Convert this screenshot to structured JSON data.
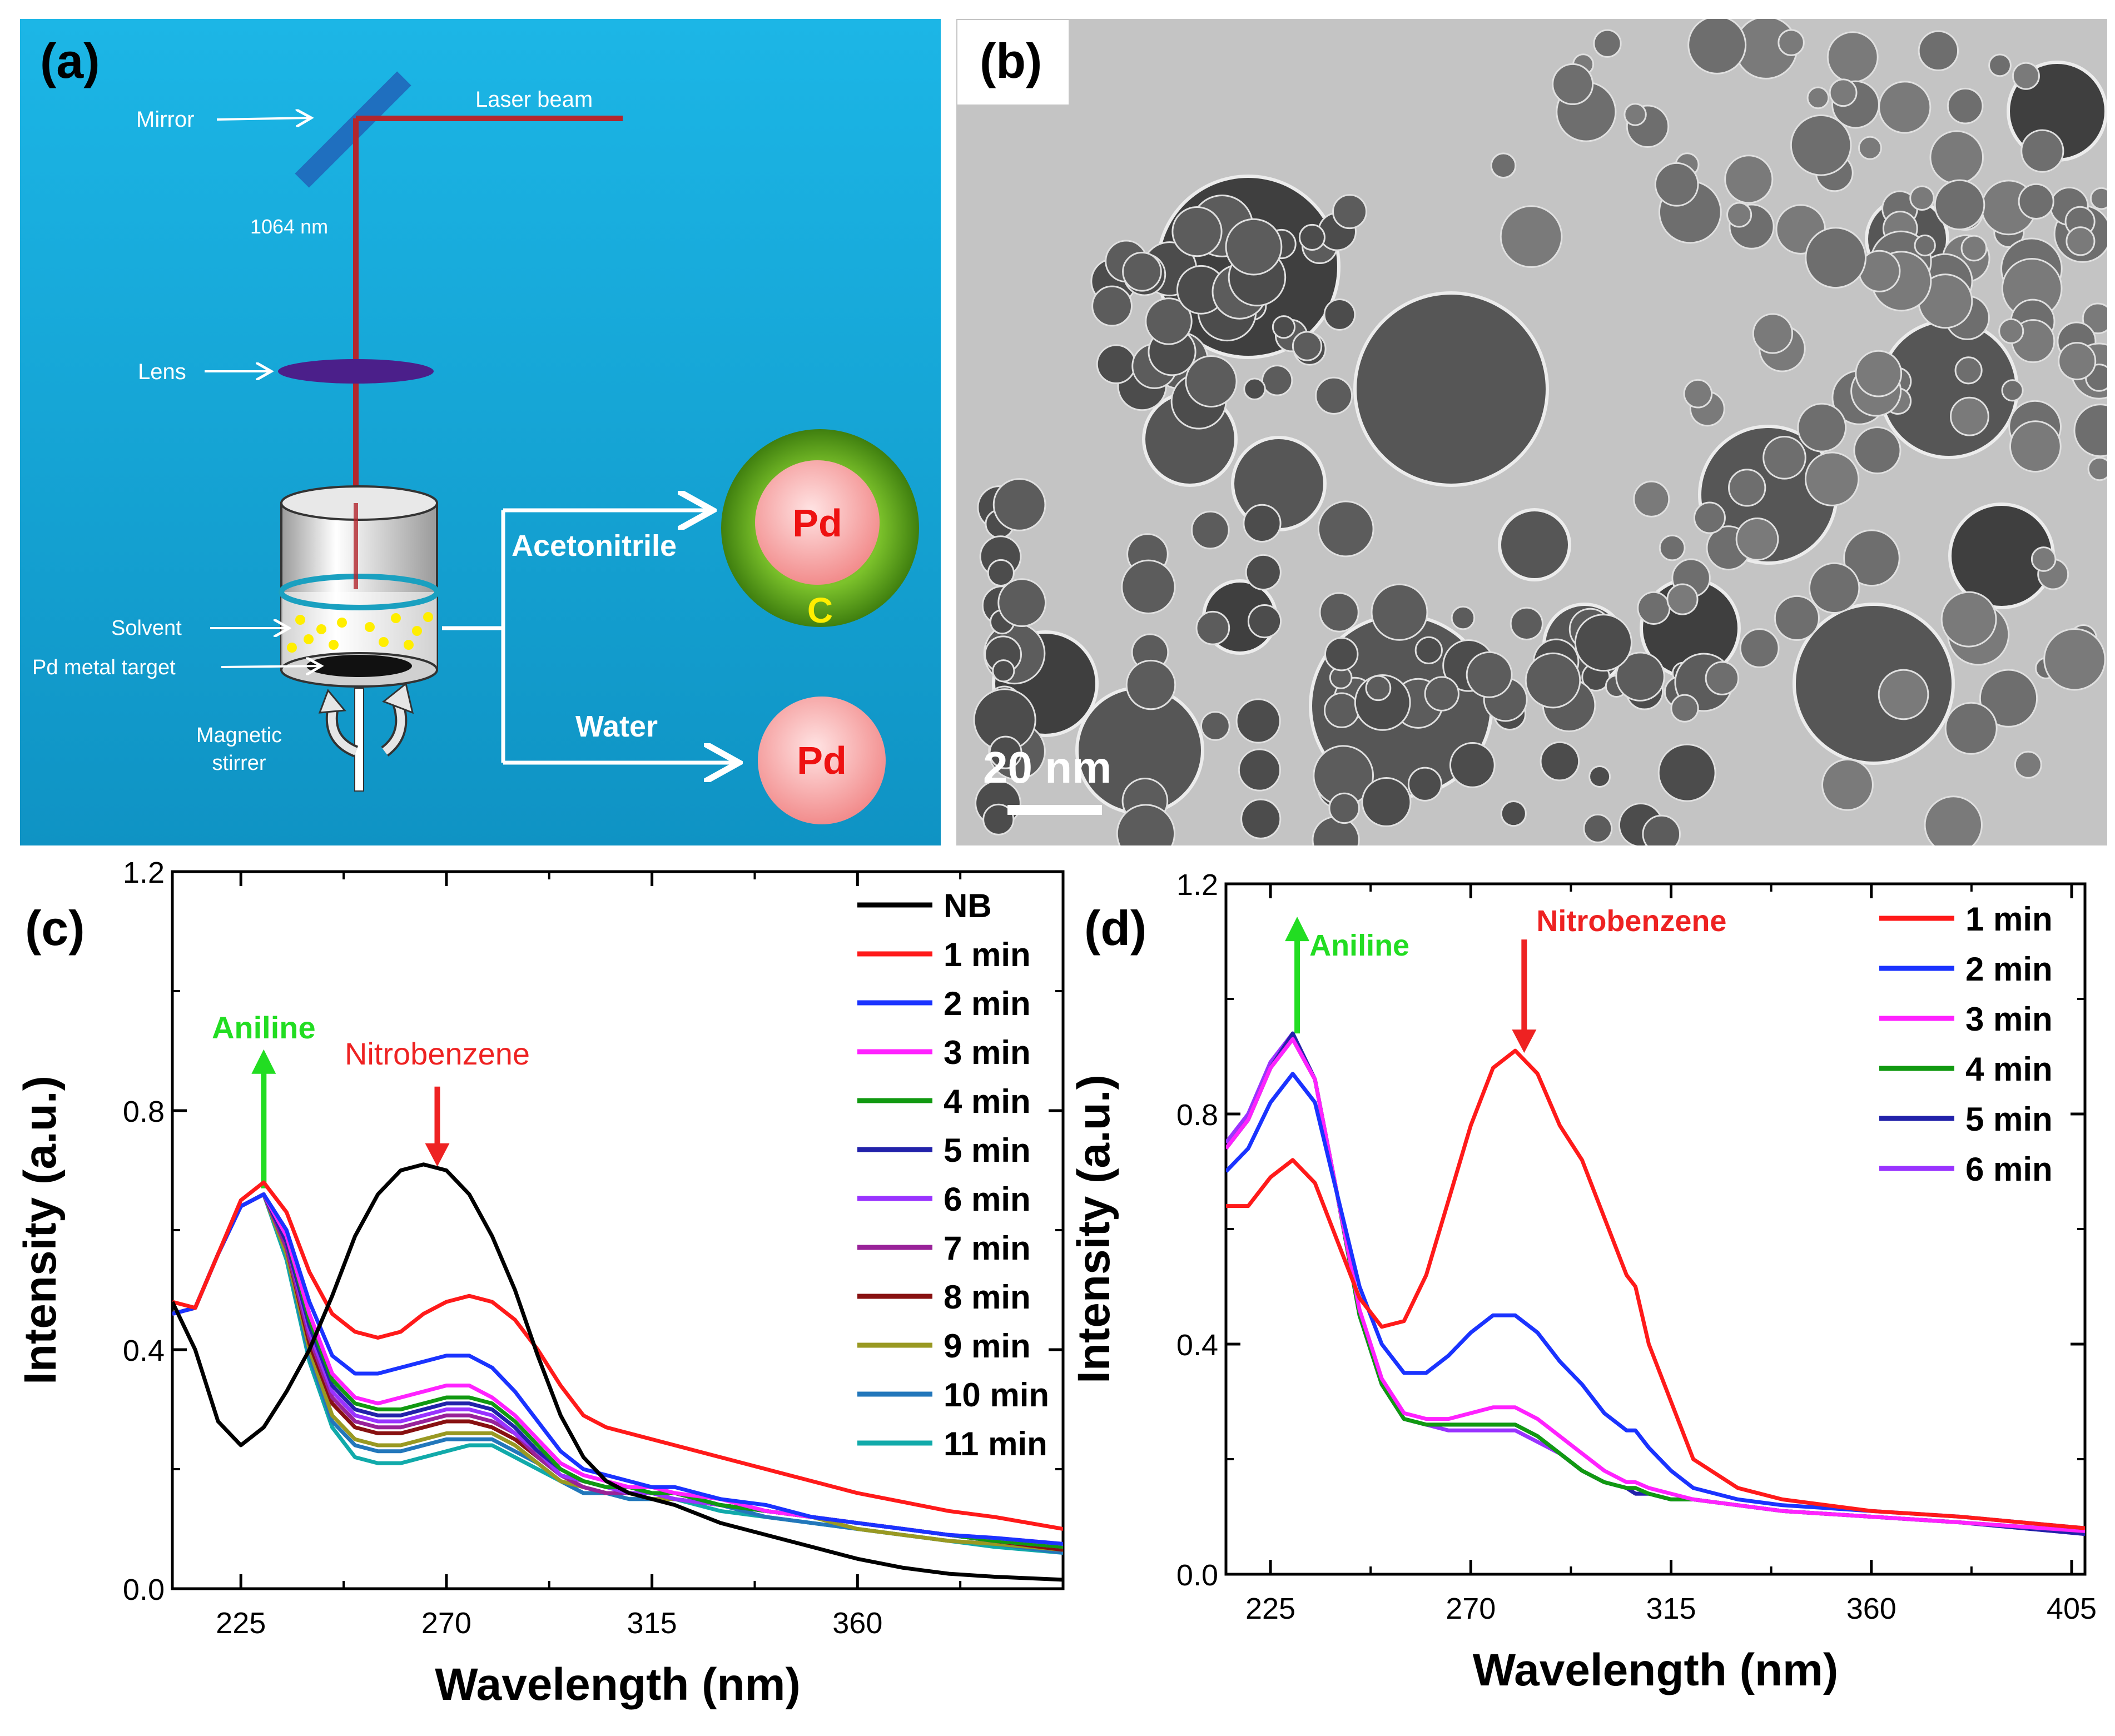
{
  "panel_a": {
    "label": "(a)",
    "mirror": "Mirror",
    "laser_beam": "Laser beam",
    "wavelength": "1064 nm",
    "lens": "Lens",
    "solvent": "Solvent",
    "target": "Pd metal target",
    "stirrer_line1": "Magnetic",
    "stirrer_line2": "stirrer",
    "acetonitrile": "Acetonitrile",
    "water": "Water",
    "pd": "Pd",
    "carbon": "C",
    "colors": {
      "background": "#1aa3d6",
      "beam": "#b3262d",
      "lens": "#4b1f8a",
      "shell": "#5a9e1c",
      "core": "#f7a6a6",
      "arrow": "#ffffff",
      "particles": "#ffee00",
      "carbon_text": "#ffee00",
      "pd_text": "#ee1111"
    }
  },
  "panel_b": {
    "label": "(b)",
    "scale_bar": "20 nm",
    "colors": {
      "background": "#c2c2c2",
      "particle": "#505050"
    }
  },
  "chart_data": [
    {
      "panel": "(c)",
      "type": "line",
      "xlabel": "Wavelength (nm)",
      "ylabel": "Intensity (a.u.)",
      "xlim": [
        210,
        405
      ],
      "ylim": [
        0.0,
        1.2
      ],
      "xticks": [
        225,
        270,
        315,
        360
      ],
      "xtick_labels": [
        "225",
        "270",
        "315",
        "360"
      ],
      "yticks": [
        0.0,
        0.4,
        0.8,
        1.2
      ],
      "ytick_labels": [
        "0.0",
        "0.4",
        "0.8",
        "1.2"
      ],
      "legend_position": "top-right",
      "annotations": [
        {
          "text": "Aniline",
          "x": 230,
          "y": 0.67,
          "direction": "up",
          "color": "#22dd22"
        },
        {
          "text": "Nitrobenzene",
          "x": 268,
          "y": 0.71,
          "direction": "down",
          "color": "#ee2222"
        }
      ],
      "x": [
        210,
        215,
        220,
        225,
        230,
        235,
        240,
        245,
        250,
        255,
        260,
        265,
        270,
        275,
        280,
        285,
        290,
        295,
        300,
        305,
        310,
        315,
        320,
        330,
        340,
        350,
        360,
        370,
        380,
        390,
        405
      ],
      "series": [
        {
          "name": "NB",
          "color": "#000000",
          "values": [
            0.48,
            0.4,
            0.28,
            0.24,
            0.27,
            0.33,
            0.4,
            0.49,
            0.59,
            0.66,
            0.7,
            0.71,
            0.7,
            0.66,
            0.59,
            0.5,
            0.39,
            0.29,
            0.22,
            0.18,
            0.16,
            0.15,
            0.14,
            0.11,
            0.09,
            0.07,
            0.05,
            0.035,
            0.025,
            0.02,
            0.015
          ]
        },
        {
          "name": "1 min",
          "color": "#ff1a1a",
          "values": [
            0.48,
            0.47,
            0.56,
            0.65,
            0.68,
            0.63,
            0.53,
            0.46,
            0.43,
            0.42,
            0.43,
            0.46,
            0.48,
            0.49,
            0.48,
            0.45,
            0.4,
            0.34,
            0.29,
            0.27,
            0.26,
            0.25,
            0.24,
            0.22,
            0.2,
            0.18,
            0.16,
            0.145,
            0.13,
            0.12,
            0.1
          ]
        },
        {
          "name": "2 min",
          "color": "#1a33ff",
          "values": [
            0.46,
            0.47,
            0.56,
            0.64,
            0.66,
            0.6,
            0.48,
            0.39,
            0.36,
            0.36,
            0.37,
            0.38,
            0.39,
            0.39,
            0.37,
            0.33,
            0.28,
            0.23,
            0.2,
            0.19,
            0.18,
            0.17,
            0.17,
            0.15,
            0.14,
            0.12,
            0.11,
            0.1,
            0.09,
            0.085,
            0.075
          ]
        },
        {
          "name": "3 min",
          "color": "#ff22ff",
          "values": [
            0.46,
            0.47,
            0.56,
            0.64,
            0.66,
            0.59,
            0.46,
            0.36,
            0.32,
            0.31,
            0.32,
            0.33,
            0.34,
            0.34,
            0.32,
            0.29,
            0.25,
            0.21,
            0.19,
            0.18,
            0.17,
            0.17,
            0.16,
            0.15,
            0.13,
            0.12,
            0.11,
            0.1,
            0.09,
            0.085,
            0.075
          ]
        },
        {
          "name": "4 min",
          "color": "#119911",
          "values": [
            0.46,
            0.47,
            0.56,
            0.64,
            0.66,
            0.59,
            0.45,
            0.35,
            0.31,
            0.3,
            0.3,
            0.31,
            0.32,
            0.32,
            0.31,
            0.28,
            0.24,
            0.2,
            0.18,
            0.17,
            0.17,
            0.16,
            0.16,
            0.14,
            0.13,
            0.12,
            0.11,
            0.1,
            0.09,
            0.08,
            0.07
          ]
        },
        {
          "name": "5 min",
          "color": "#2222aa",
          "values": [
            0.46,
            0.47,
            0.56,
            0.64,
            0.66,
            0.58,
            0.44,
            0.34,
            0.3,
            0.29,
            0.29,
            0.3,
            0.31,
            0.31,
            0.3,
            0.27,
            0.23,
            0.2,
            0.18,
            0.17,
            0.17,
            0.16,
            0.16,
            0.14,
            0.13,
            0.12,
            0.11,
            0.1,
            0.09,
            0.08,
            0.07
          ]
        },
        {
          "name": "6 min",
          "color": "#9933ff",
          "values": [
            0.46,
            0.47,
            0.56,
            0.64,
            0.66,
            0.58,
            0.43,
            0.33,
            0.29,
            0.28,
            0.28,
            0.29,
            0.3,
            0.3,
            0.29,
            0.26,
            0.23,
            0.19,
            0.18,
            0.17,
            0.16,
            0.16,
            0.15,
            0.14,
            0.13,
            0.12,
            0.11,
            0.1,
            0.09,
            0.08,
            0.07
          ]
        },
        {
          "name": "7 min",
          "color": "#992299",
          "values": [
            0.46,
            0.47,
            0.56,
            0.64,
            0.66,
            0.57,
            0.42,
            0.32,
            0.28,
            0.27,
            0.27,
            0.28,
            0.29,
            0.29,
            0.28,
            0.26,
            0.22,
            0.19,
            0.17,
            0.16,
            0.16,
            0.16,
            0.15,
            0.14,
            0.13,
            0.12,
            0.11,
            0.1,
            0.09,
            0.08,
            0.07
          ]
        },
        {
          "name": "8 min",
          "color": "#881111",
          "values": [
            0.46,
            0.47,
            0.56,
            0.64,
            0.66,
            0.57,
            0.41,
            0.31,
            0.27,
            0.26,
            0.26,
            0.27,
            0.28,
            0.28,
            0.27,
            0.25,
            0.22,
            0.19,
            0.17,
            0.16,
            0.16,
            0.16,
            0.15,
            0.14,
            0.13,
            0.12,
            0.11,
            0.1,
            0.09,
            0.08,
            0.065
          ]
        },
        {
          "name": "9 min",
          "color": "#999922",
          "values": [
            0.46,
            0.47,
            0.56,
            0.64,
            0.66,
            0.56,
            0.4,
            0.29,
            0.25,
            0.24,
            0.24,
            0.25,
            0.26,
            0.26,
            0.26,
            0.24,
            0.21,
            0.18,
            0.17,
            0.16,
            0.16,
            0.15,
            0.15,
            0.14,
            0.13,
            0.12,
            0.1,
            0.09,
            0.08,
            0.075,
            0.065
          ]
        },
        {
          "name": "10 min",
          "color": "#2277bb",
          "values": [
            0.46,
            0.47,
            0.56,
            0.64,
            0.66,
            0.56,
            0.39,
            0.28,
            0.24,
            0.23,
            0.23,
            0.24,
            0.25,
            0.25,
            0.25,
            0.23,
            0.21,
            0.18,
            0.16,
            0.16,
            0.15,
            0.15,
            0.15,
            0.14,
            0.12,
            0.11,
            0.1,
            0.09,
            0.08,
            0.075,
            0.06
          ]
        },
        {
          "name": "11 min",
          "color": "#11aaaa",
          "values": [
            0.46,
            0.47,
            0.56,
            0.64,
            0.66,
            0.55,
            0.38,
            0.27,
            0.22,
            0.21,
            0.21,
            0.22,
            0.23,
            0.24,
            0.24,
            0.22,
            0.2,
            0.18,
            0.16,
            0.16,
            0.15,
            0.15,
            0.15,
            0.13,
            0.12,
            0.11,
            0.1,
            0.09,
            0.08,
            0.07,
            0.06
          ]
        }
      ]
    },
    {
      "panel": "(d)",
      "type": "line",
      "xlabel": "Wavelength (nm)",
      "ylabel": "Intensity (a.u.)",
      "xlim": [
        215,
        408
      ],
      "ylim": [
        0.0,
        1.2
      ],
      "xticks": [
        225,
        270,
        315,
        360,
        405
      ],
      "xtick_labels": [
        "225",
        "270",
        "315",
        "360",
        "405"
      ],
      "yticks": [
        0.0,
        0.4,
        0.8,
        1.2
      ],
      "ytick_labels": [
        "0.0",
        "0.4",
        "0.8",
        "1.2"
      ],
      "legend_position": "top-right",
      "annotations": [
        {
          "text": "Aniline",
          "x": 231,
          "y": 0.94,
          "direction": "up",
          "color": "#22dd22"
        },
        {
          "text": "Nitrobenzene",
          "x": 282,
          "y": 0.91,
          "direction": "down",
          "color": "#ee2222"
        }
      ],
      "x": [
        215,
        220,
        225,
        230,
        235,
        240,
        245,
        250,
        255,
        260,
        265,
        270,
        275,
        280,
        285,
        290,
        295,
        300,
        305,
        307,
        310,
        315,
        320,
        330,
        340,
        360,
        380,
        408
      ],
      "series": [
        {
          "name": "1 min",
          "color": "#ff1a1a",
          "values": [
            0.64,
            0.64,
            0.69,
            0.72,
            0.68,
            0.58,
            0.48,
            0.43,
            0.44,
            0.52,
            0.65,
            0.78,
            0.88,
            0.91,
            0.87,
            0.78,
            0.72,
            0.62,
            0.52,
            0.5,
            0.4,
            0.3,
            0.2,
            0.15,
            0.13,
            0.11,
            0.1,
            0.08
          ]
        },
        {
          "name": "2 min",
          "color": "#1a33ff",
          "values": [
            0.7,
            0.74,
            0.82,
            0.87,
            0.82,
            0.66,
            0.5,
            0.4,
            0.35,
            0.35,
            0.38,
            0.42,
            0.45,
            0.45,
            0.42,
            0.37,
            0.33,
            0.28,
            0.25,
            0.25,
            0.22,
            0.18,
            0.15,
            0.13,
            0.12,
            0.11,
            0.1,
            0.08
          ]
        },
        {
          "name": "3 min",
          "color": "#ff22ff",
          "values": [
            0.74,
            0.79,
            0.88,
            0.93,
            0.86,
            0.66,
            0.46,
            0.34,
            0.28,
            0.27,
            0.27,
            0.28,
            0.29,
            0.29,
            0.27,
            0.24,
            0.21,
            0.18,
            0.16,
            0.16,
            0.15,
            0.14,
            0.13,
            0.12,
            0.11,
            0.1,
            0.09,
            0.075
          ]
        },
        {
          "name": "4 min",
          "color": "#119911",
          "values": [
            0.74,
            0.79,
            0.88,
            0.93,
            0.86,
            0.66,
            0.45,
            0.33,
            0.27,
            0.26,
            0.26,
            0.26,
            0.26,
            0.26,
            0.24,
            0.21,
            0.18,
            0.16,
            0.15,
            0.15,
            0.14,
            0.13,
            0.13,
            0.12,
            0.11,
            0.1,
            0.09,
            0.075
          ]
        },
        {
          "name": "5 min",
          "color": "#2222aa",
          "values": [
            0.74,
            0.79,
            0.88,
            0.94,
            0.86,
            0.66,
            0.45,
            0.33,
            0.27,
            0.26,
            0.26,
            0.26,
            0.26,
            0.26,
            0.24,
            0.21,
            0.18,
            0.16,
            0.15,
            0.14,
            0.14,
            0.13,
            0.13,
            0.12,
            0.11,
            0.1,
            0.09,
            0.07
          ]
        },
        {
          "name": "6 min",
          "color": "#9933ff",
          "values": [
            0.75,
            0.8,
            0.89,
            0.94,
            0.86,
            0.66,
            0.45,
            0.33,
            0.27,
            0.26,
            0.25,
            0.25,
            0.25,
            0.25,
            0.23,
            0.21,
            0.18,
            0.16,
            0.15,
            0.14,
            0.14,
            0.13,
            0.13,
            0.12,
            0.11,
            0.1,
            0.09,
            0.07
          ]
        }
      ]
    }
  ]
}
